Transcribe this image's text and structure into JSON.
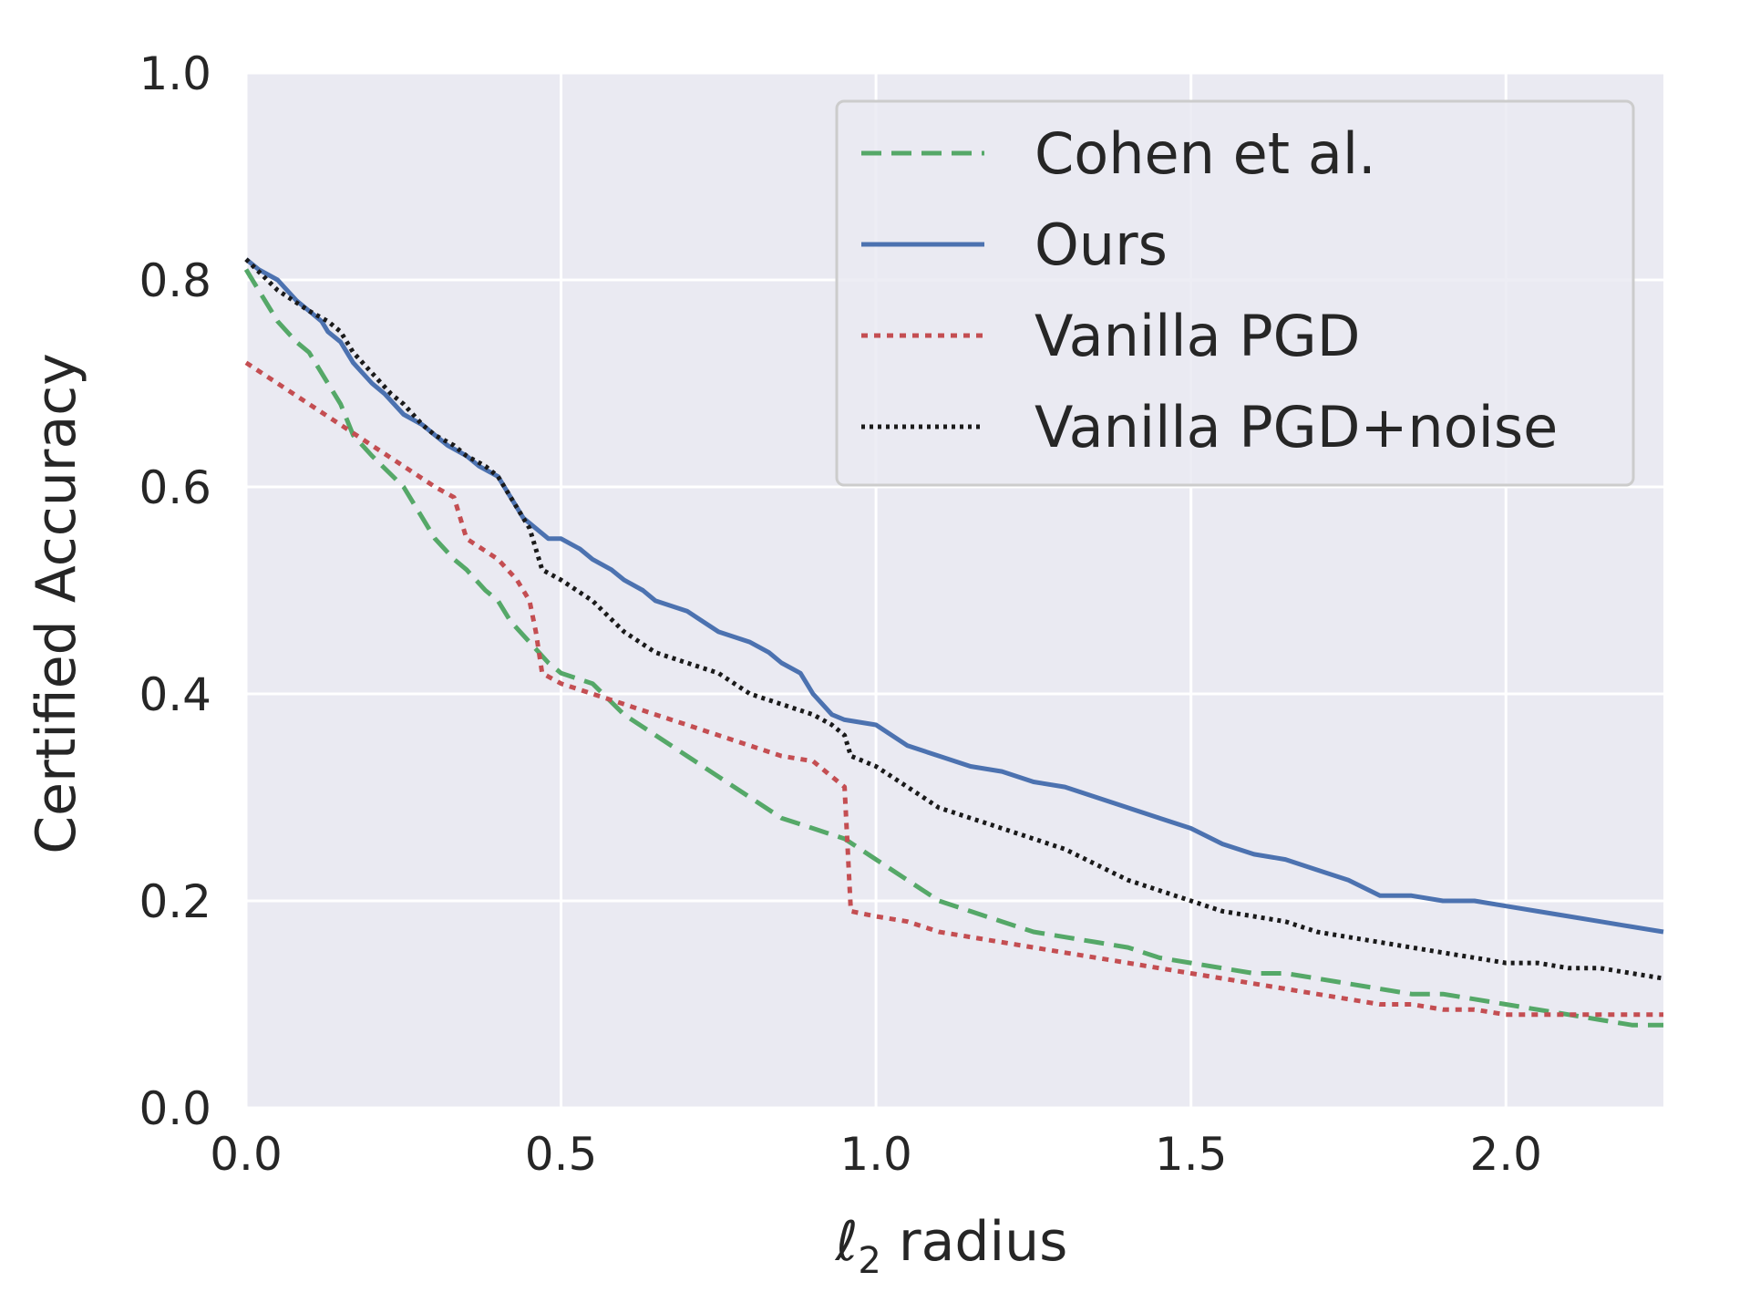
{
  "chart_data": {
    "type": "line",
    "title": "",
    "xlabel": "ℓ",
    "xlabel_sub": "2",
    "xlabel_rest": " radius",
    "ylabel": "Certified Accuracy",
    "xlim": [
      0,
      2.25
    ],
    "ylim": [
      0,
      1.0
    ],
    "xticks": [
      "0.0",
      "0.5",
      "1.0",
      "1.5",
      "2.0"
    ],
    "xtick_values": [
      0,
      0.5,
      1.0,
      1.5,
      2.0
    ],
    "yticks": [
      "0.0",
      "0.2",
      "0.4",
      "0.6",
      "0.8",
      "1.0"
    ],
    "ytick_values": [
      0,
      0.2,
      0.4,
      0.6,
      0.8,
      1.0
    ],
    "grid": true,
    "background": "#eaeaf2",
    "legend_position": "top-right",
    "series": [
      {
        "name": "Cohen et al.",
        "color": "#55a868",
        "style": "dashed",
        "x": [
          0,
          0.02,
          0.05,
          0.08,
          0.1,
          0.13,
          0.15,
          0.17,
          0.2,
          0.25,
          0.28,
          0.3,
          0.33,
          0.35,
          0.38,
          0.4,
          0.42,
          0.45,
          0.48,
          0.5,
          0.55,
          0.6,
          0.65,
          0.7,
          0.75,
          0.8,
          0.85,
          0.9,
          0.95,
          1.0,
          1.05,
          1.1,
          1.15,
          1.2,
          1.25,
          1.3,
          1.35,
          1.4,
          1.45,
          1.5,
          1.55,
          1.6,
          1.65,
          1.7,
          1.75,
          1.8,
          1.85,
          1.9,
          1.95,
          2.0,
          2.05,
          2.1,
          2.15,
          2.2,
          2.25
        ],
        "y": [
          0.81,
          0.79,
          0.76,
          0.74,
          0.73,
          0.7,
          0.68,
          0.65,
          0.63,
          0.6,
          0.57,
          0.55,
          0.53,
          0.52,
          0.5,
          0.49,
          0.47,
          0.45,
          0.43,
          0.42,
          0.41,
          0.38,
          0.36,
          0.34,
          0.32,
          0.3,
          0.28,
          0.27,
          0.26,
          0.24,
          0.22,
          0.2,
          0.19,
          0.18,
          0.17,
          0.165,
          0.16,
          0.155,
          0.145,
          0.14,
          0.135,
          0.13,
          0.13,
          0.125,
          0.12,
          0.115,
          0.11,
          0.11,
          0.105,
          0.1,
          0.095,
          0.09,
          0.085,
          0.08,
          0.08
        ]
      },
      {
        "name": "Ours",
        "color": "#4c72b0",
        "style": "solid",
        "x": [
          0,
          0.02,
          0.05,
          0.08,
          0.1,
          0.12,
          0.13,
          0.15,
          0.17,
          0.2,
          0.22,
          0.25,
          0.28,
          0.3,
          0.32,
          0.35,
          0.37,
          0.4,
          0.42,
          0.44,
          0.46,
          0.48,
          0.5,
          0.53,
          0.55,
          0.58,
          0.6,
          0.63,
          0.65,
          0.7,
          0.75,
          0.8,
          0.83,
          0.85,
          0.88,
          0.9,
          0.93,
          0.95,
          1.0,
          1.05,
          1.1,
          1.15,
          1.2,
          1.25,
          1.3,
          1.35,
          1.4,
          1.45,
          1.5,
          1.55,
          1.6,
          1.65,
          1.7,
          1.75,
          1.8,
          1.85,
          1.9,
          1.95,
          2.0,
          2.05,
          2.1,
          2.15,
          2.2,
          2.25
        ],
        "y": [
          0.82,
          0.81,
          0.8,
          0.78,
          0.77,
          0.76,
          0.75,
          0.74,
          0.72,
          0.7,
          0.69,
          0.67,
          0.66,
          0.65,
          0.64,
          0.63,
          0.62,
          0.61,
          0.59,
          0.57,
          0.56,
          0.55,
          0.55,
          0.54,
          0.53,
          0.52,
          0.51,
          0.5,
          0.49,
          0.48,
          0.46,
          0.45,
          0.44,
          0.43,
          0.42,
          0.4,
          0.38,
          0.375,
          0.37,
          0.35,
          0.34,
          0.33,
          0.325,
          0.315,
          0.31,
          0.3,
          0.29,
          0.28,
          0.27,
          0.255,
          0.245,
          0.24,
          0.23,
          0.22,
          0.205,
          0.205,
          0.2,
          0.2,
          0.195,
          0.19,
          0.185,
          0.18,
          0.175,
          0.17
        ]
      },
      {
        "name": "Vanilla PGD",
        "color": "#c44e52",
        "style": "dotted",
        "x": [
          0,
          0.05,
          0.1,
          0.15,
          0.2,
          0.25,
          0.3,
          0.33,
          0.35,
          0.4,
          0.43,
          0.45,
          0.46,
          0.47,
          0.5,
          0.55,
          0.6,
          0.65,
          0.7,
          0.75,
          0.8,
          0.85,
          0.9,
          0.93,
          0.95,
          0.96,
          1.0,
          1.05,
          1.1,
          1.15,
          1.2,
          1.25,
          1.3,
          1.35,
          1.4,
          1.45,
          1.5,
          1.55,
          1.6,
          1.65,
          1.7,
          1.75,
          1.8,
          1.85,
          1.9,
          1.95,
          2.0,
          2.05,
          2.1,
          2.15,
          2.2,
          2.25
        ],
        "y": [
          0.72,
          0.7,
          0.68,
          0.66,
          0.64,
          0.62,
          0.6,
          0.59,
          0.55,
          0.53,
          0.51,
          0.49,
          0.46,
          0.42,
          0.41,
          0.4,
          0.39,
          0.38,
          0.37,
          0.36,
          0.35,
          0.34,
          0.335,
          0.32,
          0.31,
          0.19,
          0.185,
          0.18,
          0.17,
          0.165,
          0.16,
          0.155,
          0.15,
          0.145,
          0.14,
          0.135,
          0.13,
          0.125,
          0.12,
          0.115,
          0.11,
          0.105,
          0.1,
          0.1,
          0.095,
          0.095,
          0.09,
          0.09,
          0.09,
          0.09,
          0.09,
          0.09
        ]
      },
      {
        "name": "Vanilla PGD+noise",
        "color": "#1a1a1a",
        "style": "densely-dotted",
        "x": [
          0,
          0.05,
          0.1,
          0.13,
          0.15,
          0.17,
          0.2,
          0.23,
          0.25,
          0.28,
          0.3,
          0.33,
          0.35,
          0.38,
          0.4,
          0.42,
          0.44,
          0.45,
          0.46,
          0.47,
          0.5,
          0.55,
          0.6,
          0.65,
          0.7,
          0.75,
          0.8,
          0.85,
          0.9,
          0.93,
          0.95,
          0.96,
          1.0,
          1.05,
          1.1,
          1.15,
          1.2,
          1.25,
          1.3,
          1.35,
          1.4,
          1.45,
          1.5,
          1.55,
          1.6,
          1.65,
          1.7,
          1.75,
          1.8,
          1.85,
          1.9,
          1.95,
          2.0,
          2.05,
          2.1,
          2.15,
          2.2,
          2.25
        ],
        "y": [
          0.82,
          0.79,
          0.77,
          0.76,
          0.75,
          0.73,
          0.71,
          0.69,
          0.68,
          0.66,
          0.65,
          0.64,
          0.63,
          0.62,
          0.61,
          0.59,
          0.57,
          0.56,
          0.54,
          0.52,
          0.51,
          0.49,
          0.46,
          0.44,
          0.43,
          0.42,
          0.4,
          0.39,
          0.38,
          0.37,
          0.36,
          0.34,
          0.33,
          0.31,
          0.29,
          0.28,
          0.27,
          0.26,
          0.25,
          0.235,
          0.22,
          0.21,
          0.2,
          0.19,
          0.185,
          0.18,
          0.17,
          0.165,
          0.16,
          0.155,
          0.15,
          0.145,
          0.14,
          0.14,
          0.135,
          0.135,
          0.13,
          0.125
        ]
      }
    ]
  }
}
